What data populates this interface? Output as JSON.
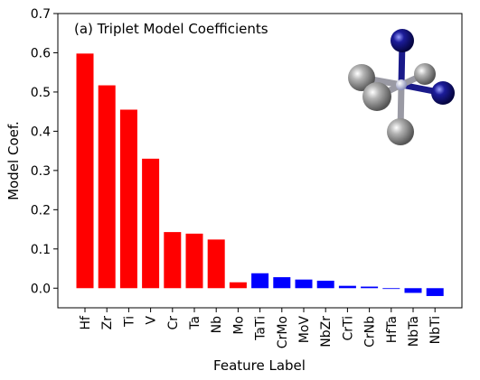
{
  "chart_data": {
    "type": "bar",
    "title": "(a) Triplet Model Coefficients",
    "xlabel": "Feature Label",
    "ylabel": "Model Coef.",
    "ylim": [
      -0.05,
      0.7
    ],
    "yticks": [
      "0.0",
      "0.1",
      "0.2",
      "0.3",
      "0.4",
      "0.5",
      "0.6",
      "0.7"
    ],
    "categories": [
      "Hf",
      "Zr",
      "Ti",
      "V",
      "Cr",
      "Ta",
      "Nb",
      "Mo",
      "TaTi",
      "CrMo",
      "MoV",
      "NbZr",
      "CrTi",
      "CrNb",
      "HfTa",
      "NbTa",
      "NbTi"
    ],
    "values": [
      0.598,
      0.517,
      0.455,
      0.33,
      0.143,
      0.139,
      0.124,
      0.015,
      0.038,
      0.028,
      0.022,
      0.019,
      0.006,
      0.004,
      -0.002,
      -0.012,
      -0.02
    ],
    "groups": [
      "single",
      "single",
      "single",
      "single",
      "single",
      "single",
      "single",
      "single",
      "pair",
      "pair",
      "pair",
      "pair",
      "pair",
      "pair",
      "pair",
      "pair",
      "pair"
    ],
    "colors": {
      "single": "#ff0000",
      "pair": "#0000ff"
    },
    "grid": false,
    "inset": "molecule-illustration"
  }
}
